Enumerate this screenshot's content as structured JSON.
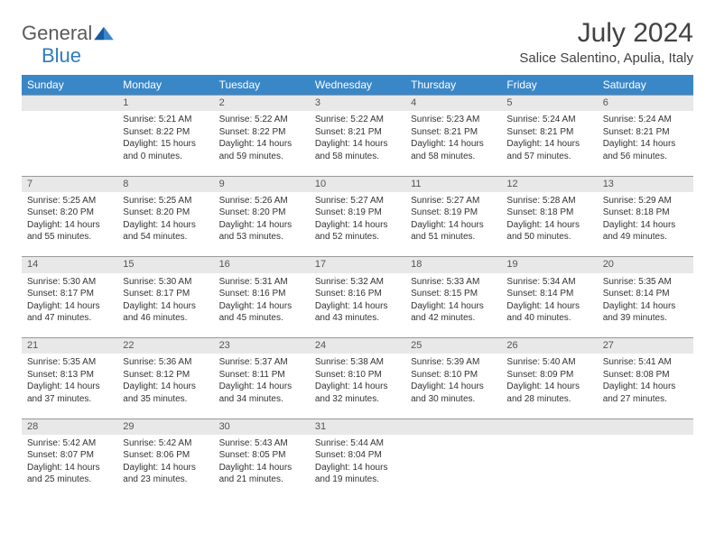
{
  "brand": {
    "part1": "General",
    "part2": "Blue"
  },
  "title": {
    "month_year": "July 2024",
    "location": "Salice Salentino, Apulia, Italy"
  },
  "colors": {
    "header_bg": "#3a87c8",
    "header_text": "#ffffff",
    "daynum_bg": "#e8e8e8",
    "daynum_border": "#999999",
    "text": "#333333",
    "brand_gray": "#5a5a5a",
    "brand_blue": "#2f7ac0"
  },
  "weekdays": [
    "Sunday",
    "Monday",
    "Tuesday",
    "Wednesday",
    "Thursday",
    "Friday",
    "Saturday"
  ],
  "weeks": [
    {
      "nums": [
        "",
        "1",
        "2",
        "3",
        "4",
        "5",
        "6"
      ],
      "cells": [
        "",
        "Sunrise: 5:21 AM\nSunset: 8:22 PM\nDaylight: 15 hours and 0 minutes.",
        "Sunrise: 5:22 AM\nSunset: 8:22 PM\nDaylight: 14 hours and 59 minutes.",
        "Sunrise: 5:22 AM\nSunset: 8:21 PM\nDaylight: 14 hours and 58 minutes.",
        "Sunrise: 5:23 AM\nSunset: 8:21 PM\nDaylight: 14 hours and 58 minutes.",
        "Sunrise: 5:24 AM\nSunset: 8:21 PM\nDaylight: 14 hours and 57 minutes.",
        "Sunrise: 5:24 AM\nSunset: 8:21 PM\nDaylight: 14 hours and 56 minutes."
      ]
    },
    {
      "nums": [
        "7",
        "8",
        "9",
        "10",
        "11",
        "12",
        "13"
      ],
      "cells": [
        "Sunrise: 5:25 AM\nSunset: 8:20 PM\nDaylight: 14 hours and 55 minutes.",
        "Sunrise: 5:25 AM\nSunset: 8:20 PM\nDaylight: 14 hours and 54 minutes.",
        "Sunrise: 5:26 AM\nSunset: 8:20 PM\nDaylight: 14 hours and 53 minutes.",
        "Sunrise: 5:27 AM\nSunset: 8:19 PM\nDaylight: 14 hours and 52 minutes.",
        "Sunrise: 5:27 AM\nSunset: 8:19 PM\nDaylight: 14 hours and 51 minutes.",
        "Sunrise: 5:28 AM\nSunset: 8:18 PM\nDaylight: 14 hours and 50 minutes.",
        "Sunrise: 5:29 AM\nSunset: 8:18 PM\nDaylight: 14 hours and 49 minutes."
      ]
    },
    {
      "nums": [
        "14",
        "15",
        "16",
        "17",
        "18",
        "19",
        "20"
      ],
      "cells": [
        "Sunrise: 5:30 AM\nSunset: 8:17 PM\nDaylight: 14 hours and 47 minutes.",
        "Sunrise: 5:30 AM\nSunset: 8:17 PM\nDaylight: 14 hours and 46 minutes.",
        "Sunrise: 5:31 AM\nSunset: 8:16 PM\nDaylight: 14 hours and 45 minutes.",
        "Sunrise: 5:32 AM\nSunset: 8:16 PM\nDaylight: 14 hours and 43 minutes.",
        "Sunrise: 5:33 AM\nSunset: 8:15 PM\nDaylight: 14 hours and 42 minutes.",
        "Sunrise: 5:34 AM\nSunset: 8:14 PM\nDaylight: 14 hours and 40 minutes.",
        "Sunrise: 5:35 AM\nSunset: 8:14 PM\nDaylight: 14 hours and 39 minutes."
      ]
    },
    {
      "nums": [
        "21",
        "22",
        "23",
        "24",
        "25",
        "26",
        "27"
      ],
      "cells": [
        "Sunrise: 5:35 AM\nSunset: 8:13 PM\nDaylight: 14 hours and 37 minutes.",
        "Sunrise: 5:36 AM\nSunset: 8:12 PM\nDaylight: 14 hours and 35 minutes.",
        "Sunrise: 5:37 AM\nSunset: 8:11 PM\nDaylight: 14 hours and 34 minutes.",
        "Sunrise: 5:38 AM\nSunset: 8:10 PM\nDaylight: 14 hours and 32 minutes.",
        "Sunrise: 5:39 AM\nSunset: 8:10 PM\nDaylight: 14 hours and 30 minutes.",
        "Sunrise: 5:40 AM\nSunset: 8:09 PM\nDaylight: 14 hours and 28 minutes.",
        "Sunrise: 5:41 AM\nSunset: 8:08 PM\nDaylight: 14 hours and 27 minutes."
      ]
    },
    {
      "nums": [
        "28",
        "29",
        "30",
        "31",
        "",
        "",
        ""
      ],
      "cells": [
        "Sunrise: 5:42 AM\nSunset: 8:07 PM\nDaylight: 14 hours and 25 minutes.",
        "Sunrise: 5:42 AM\nSunset: 8:06 PM\nDaylight: 14 hours and 23 minutes.",
        "Sunrise: 5:43 AM\nSunset: 8:05 PM\nDaylight: 14 hours and 21 minutes.",
        "Sunrise: 5:44 AM\nSunset: 8:04 PM\nDaylight: 14 hours and 19 minutes.",
        "",
        "",
        ""
      ]
    }
  ]
}
